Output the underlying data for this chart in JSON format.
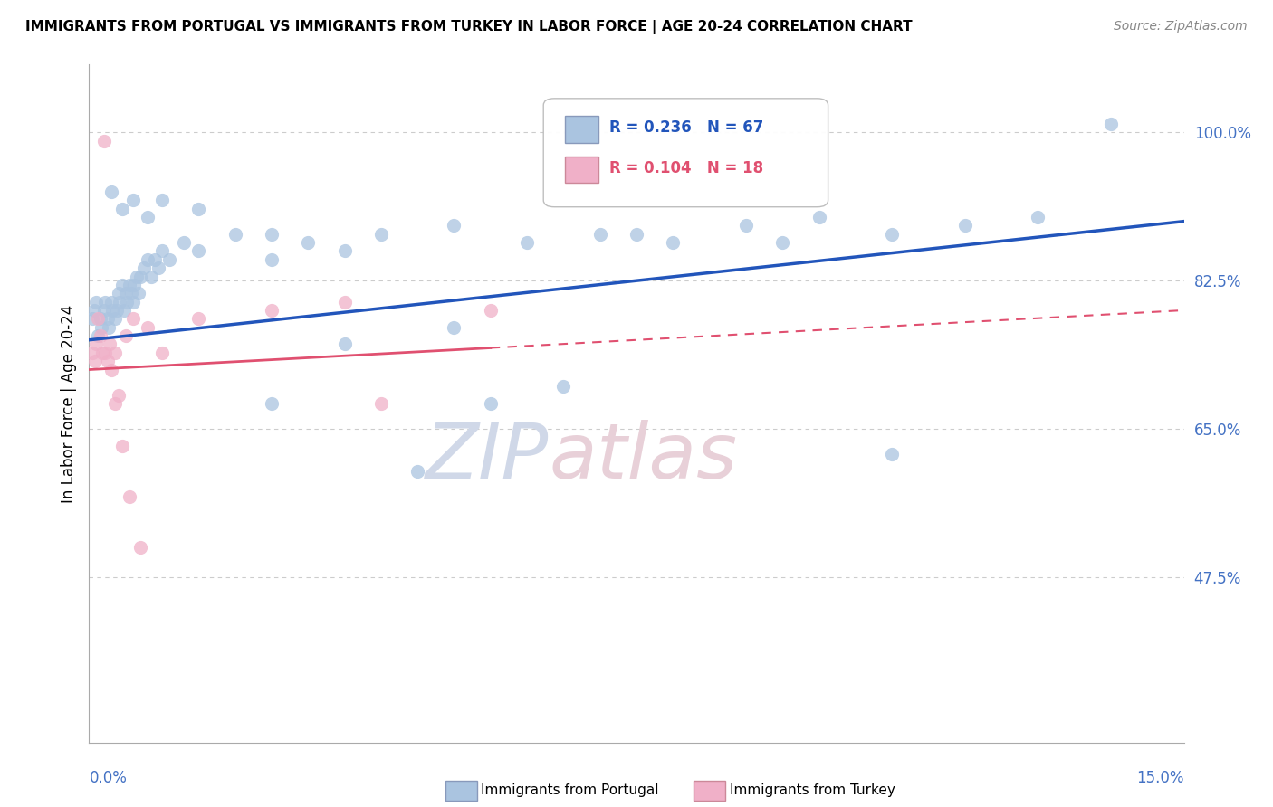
{
  "title": "IMMIGRANTS FROM PORTUGAL VS IMMIGRANTS FROM TURKEY IN LABOR FORCE | AGE 20-24 CORRELATION CHART",
  "source": "Source: ZipAtlas.com",
  "ylabel": "In Labor Force | Age 20-24",
  "yticks": [
    47.5,
    65.0,
    82.5,
    100.0
  ],
  "ytick_labels": [
    "47.5%",
    "65.0%",
    "82.5%",
    "100.0%"
  ],
  "xmin": 0.0,
  "xmax": 15.0,
  "ymin": 28.0,
  "ymax": 108.0,
  "portugal_color": "#aac4e0",
  "turkey_color": "#f0b0c8",
  "portugal_line_color": "#2255bb",
  "turkey_line_color": "#e05070",
  "watermark_color": "#d0d8e8",
  "watermark_color2": "#e8d0d8",
  "portugal_x": [
    0.05,
    0.07,
    0.1,
    0.12,
    0.15,
    0.17,
    0.2,
    0.22,
    0.25,
    0.27,
    0.3,
    0.32,
    0.35,
    0.38,
    0.4,
    0.42,
    0.45,
    0.48,
    0.5,
    0.52,
    0.55,
    0.58,
    0.6,
    0.62,
    0.65,
    0.68,
    0.7,
    0.75,
    0.8,
    0.85,
    0.9,
    0.95,
    1.0,
    1.1,
    1.3,
    1.5,
    2.0,
    2.5,
    3.0,
    3.5,
    4.0,
    5.0,
    6.0,
    7.0,
    8.0,
    9.0,
    10.0,
    11.0,
    12.0,
    13.0,
    14.0,
    0.3,
    0.45,
    0.6,
    0.8,
    1.0,
    1.5,
    2.5,
    5.5,
    11.0,
    5.0,
    3.5,
    7.5,
    9.5,
    2.5,
    6.5,
    4.5
  ],
  "portugal_y": [
    78,
    79,
    80,
    76,
    78,
    77,
    79,
    80,
    78,
    77,
    80,
    79,
    78,
    79,
    81,
    80,
    82,
    79,
    81,
    80,
    82,
    81,
    80,
    82,
    83,
    81,
    83,
    84,
    85,
    83,
    85,
    84,
    86,
    85,
    87,
    86,
    88,
    85,
    87,
    86,
    88,
    89,
    87,
    88,
    87,
    89,
    90,
    88,
    89,
    90,
    101,
    93,
    91,
    92,
    90,
    92,
    91,
    88,
    68,
    62,
    77,
    75,
    88,
    87,
    68,
    70,
    60
  ],
  "turkey_x": [
    0.05,
    0.08,
    0.1,
    0.12,
    0.15,
    0.18,
    0.2,
    0.22,
    0.25,
    0.28,
    0.3,
    0.35,
    0.4,
    0.5,
    0.6,
    0.8,
    2.5,
    3.5
  ],
  "turkey_y": [
    74,
    73,
    75,
    78,
    76,
    74,
    99,
    74,
    73,
    75,
    72,
    74,
    69,
    76,
    78,
    77,
    79,
    80
  ],
  "turkey_data_extras_x": [
    0.35,
    0.45,
    0.55,
    0.7,
    1.0,
    1.5,
    4.0,
    5.5
  ],
  "turkey_data_extras_y": [
    68,
    63,
    57,
    51,
    74,
    78,
    68,
    79
  ],
  "portugal_line_x0": 0.0,
  "portugal_line_y0": 75.5,
  "portugal_line_x1": 15.0,
  "portugal_line_y1": 89.5,
  "turkey_line_x0": 0.0,
  "turkey_line_y0": 72.0,
  "turkey_line_x1": 15.0,
  "turkey_line_y1": 79.0,
  "turkey_solid_end": 5.5
}
